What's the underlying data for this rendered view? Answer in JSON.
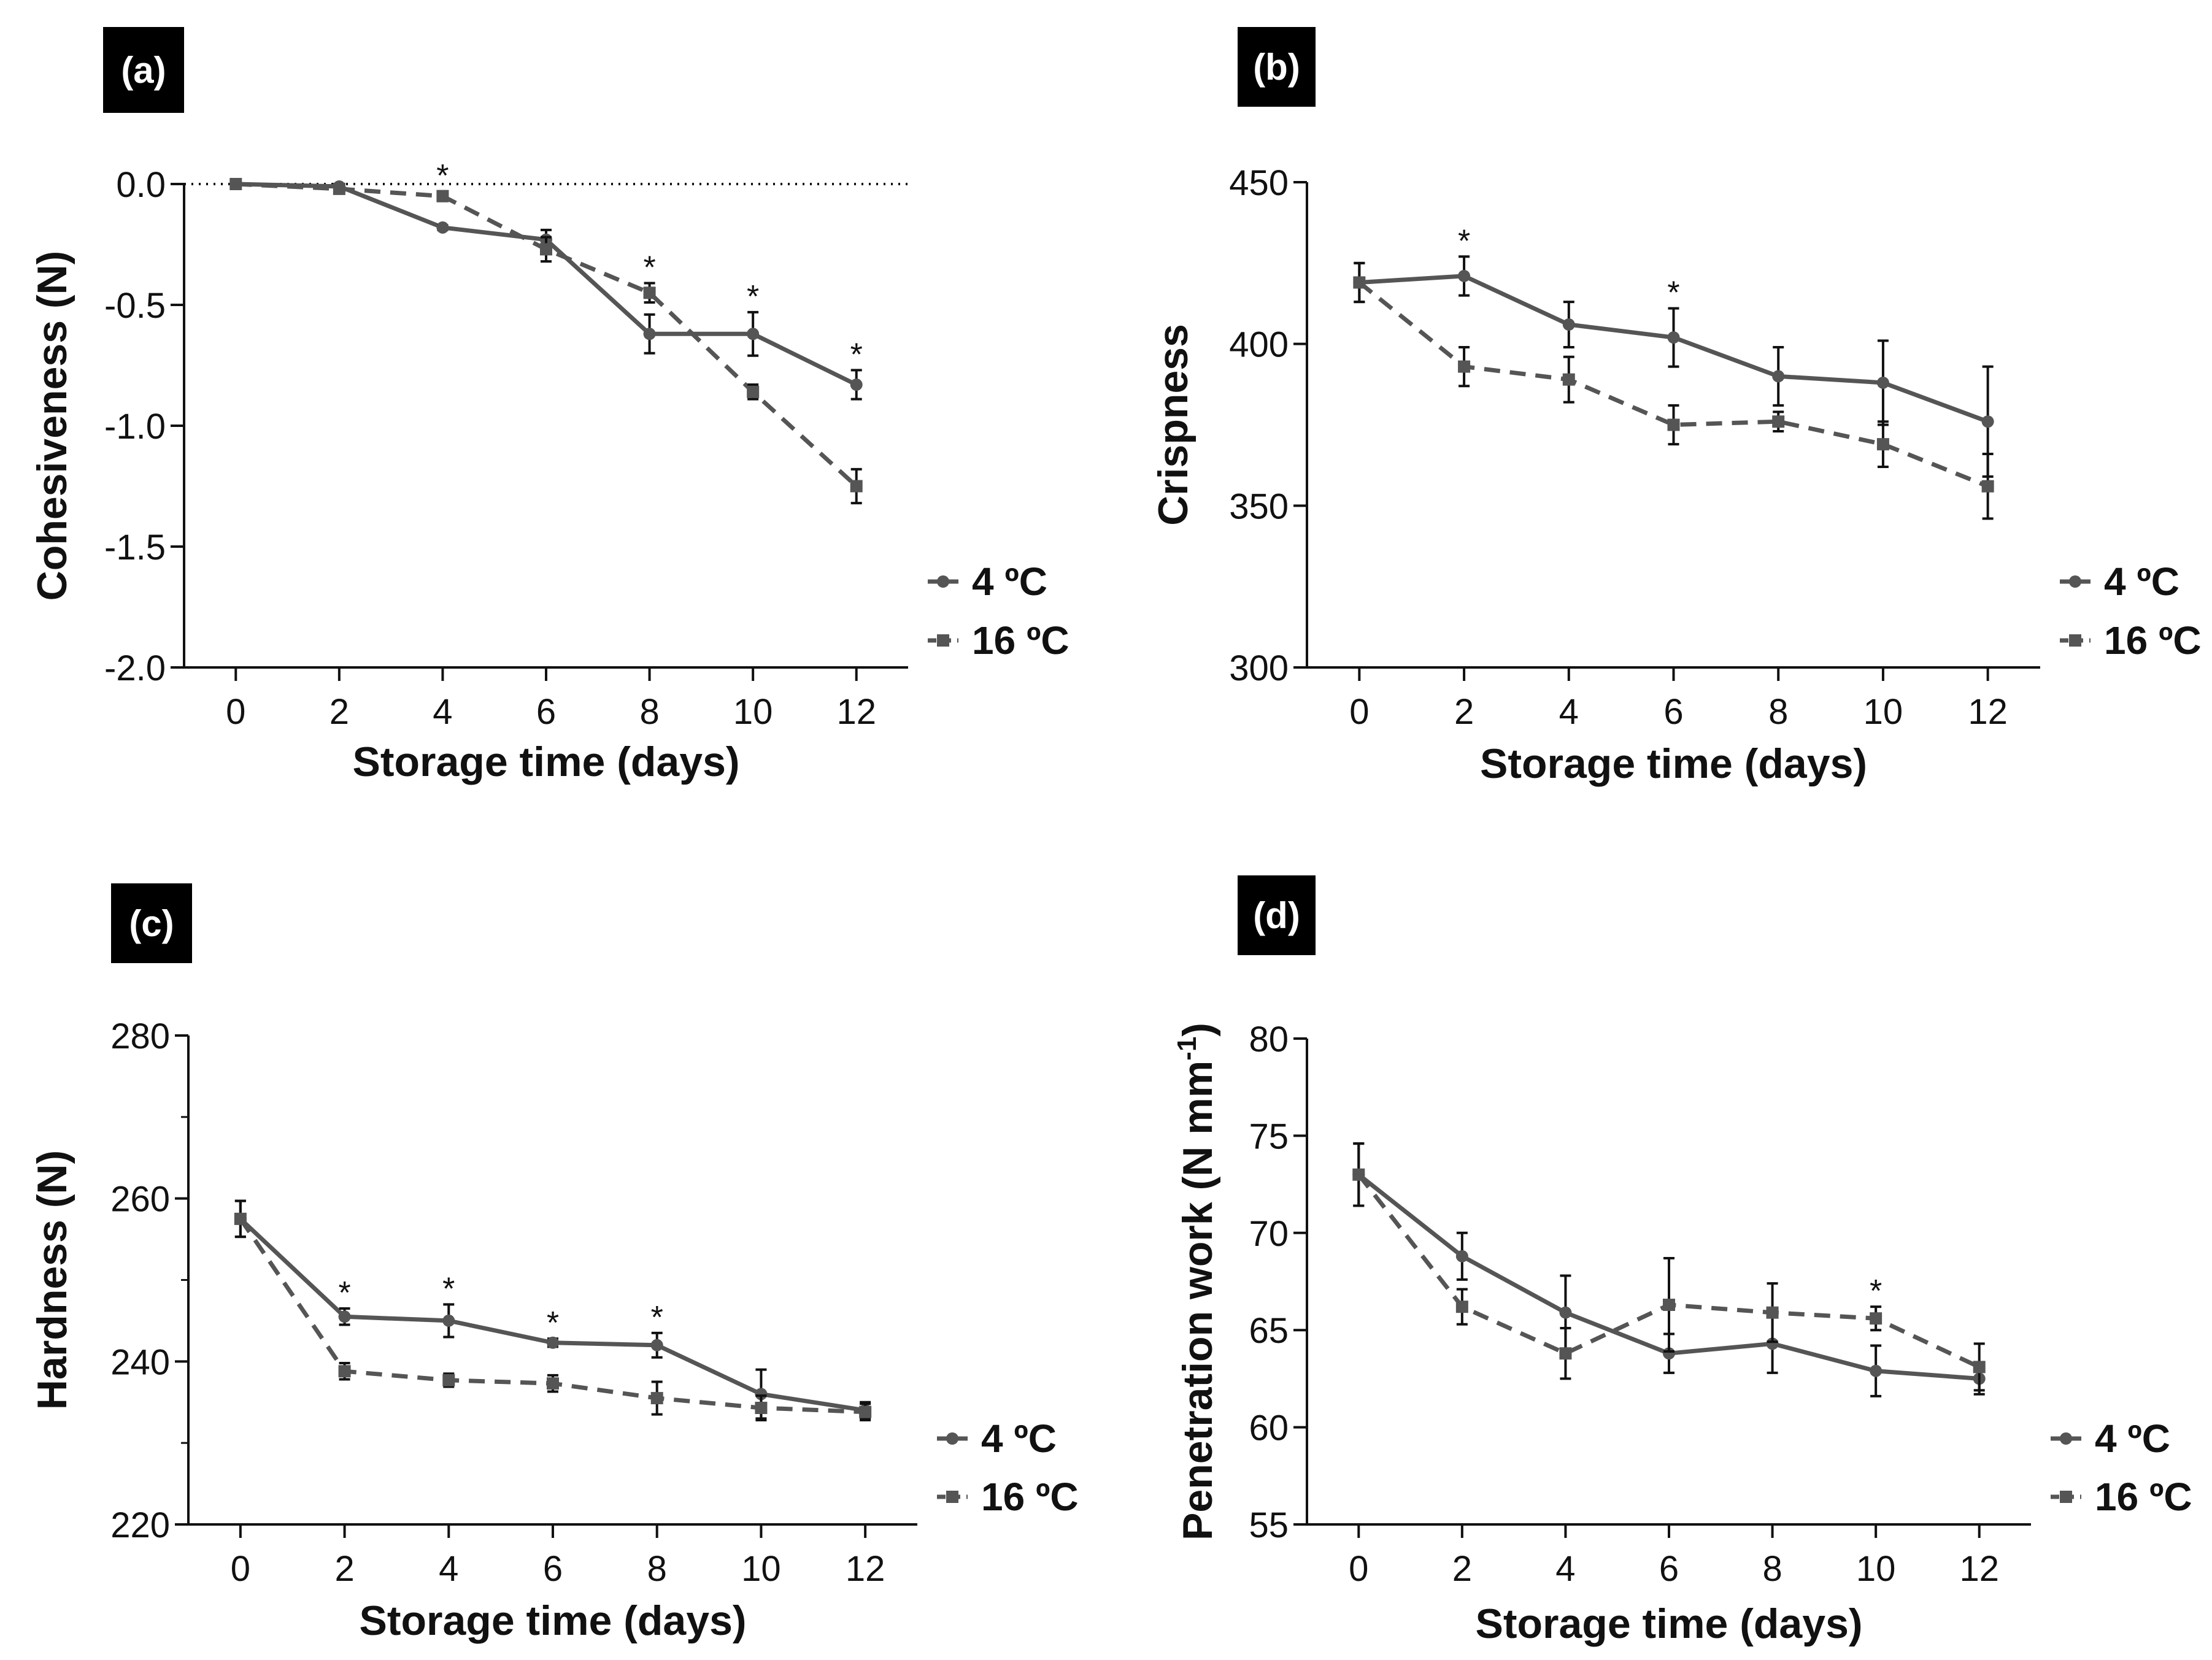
{
  "colors": {
    "series": "#555555",
    "axis": "#111111",
    "errorbar": "#111111",
    "panel_label_bg": "#000000",
    "panel_label_text": "#ffffff"
  },
  "chart_data": [
    {
      "type": "line",
      "panel_label": "(a)",
      "xlabel": "Storage time (days)",
      "ylabel": "Cohesiveness (N)",
      "x": [
        0,
        2,
        4,
        6,
        8,
        10,
        12
      ],
      "xticks": [
        0,
        2,
        4,
        6,
        8,
        10,
        12
      ],
      "xtick_labels": [
        "0",
        "2",
        "4",
        "6",
        "8",
        "10",
        "12"
      ],
      "xlim": [
        -1,
        13
      ],
      "ylim": [
        -2.0,
        0.0
      ],
      "yticks": [
        0.0,
        -0.5,
        -1.0,
        -1.5,
        -2.0
      ],
      "ytick_labels": [
        "0.0",
        "-0.5",
        "-1.0",
        "-1.5",
        "-2.0"
      ],
      "zero_reference_line": true,
      "series": [
        {
          "name": "4 ºC",
          "marker": "circle",
          "line": "solid",
          "values": [
            0.0,
            -0.01,
            -0.18,
            -0.23,
            -0.62,
            -0.62,
            -0.83
          ],
          "errors": [
            0.0,
            0.01,
            0.01,
            0.04,
            0.08,
            0.09,
            0.06
          ]
        },
        {
          "name": "16 ºC",
          "marker": "square",
          "line": "dashed",
          "values": [
            0.0,
            -0.02,
            -0.05,
            -0.27,
            -0.45,
            -0.86,
            -1.25
          ],
          "errors": [
            0.0,
            0.01,
            0.02,
            0.05,
            0.04,
            0.03,
            0.07
          ]
        }
      ],
      "significance_marker": "*",
      "significant_x": [
        4,
        8,
        10,
        12
      ],
      "legend": [
        "4 ºC",
        "16 ºC"
      ],
      "legend_position": "right"
    },
    {
      "type": "line",
      "panel_label": "(b)",
      "xlabel": "Storage time (days)",
      "ylabel": "Crispness",
      "x": [
        0,
        2,
        4,
        6,
        8,
        10,
        12
      ],
      "xticks": [
        0,
        2,
        4,
        6,
        8,
        10,
        12
      ],
      "xtick_labels": [
        "0",
        "2",
        "4",
        "6",
        "8",
        "10",
        "12"
      ],
      "xlim": [
        -1,
        13
      ],
      "ylim": [
        300,
        450
      ],
      "yticks": [
        300,
        350,
        400,
        450
      ],
      "ytick_labels": [
        "300",
        "350",
        "400",
        "450"
      ],
      "zero_reference_line": false,
      "series": [
        {
          "name": "4 ºC",
          "marker": "circle",
          "line": "solid",
          "values": [
            419,
            421,
            406,
            402,
            390,
            388,
            376
          ],
          "errors": [
            6,
            6,
            7,
            9,
            9,
            13,
            17
          ]
        },
        {
          "name": "16 ºC",
          "marker": "square",
          "line": "dashed",
          "values": [
            419,
            393,
            389,
            375,
            376,
            369,
            356
          ],
          "errors": [
            6,
            6,
            7,
            6,
            3,
            7,
            10
          ]
        }
      ],
      "significance_marker": "*",
      "significant_x": [
        2,
        6
      ],
      "legend": [
        "4 ºC",
        "16 ºC"
      ],
      "legend_position": "right"
    },
    {
      "type": "line",
      "panel_label": "(c)",
      "xlabel": "Storage time (days)",
      "ylabel": "Hardness (N)",
      "x": [
        0,
        2,
        4,
        6,
        8,
        10,
        12
      ],
      "xticks": [
        0,
        2,
        4,
        6,
        8,
        10,
        12
      ],
      "xtick_labels": [
        "0",
        "2",
        "4",
        "6",
        "8",
        "10",
        "12"
      ],
      "xlim": [
        -1,
        13
      ],
      "ylim": [
        220,
        280
      ],
      "yticks": [
        220,
        240,
        260,
        280
      ],
      "ytick_labels": [
        "220",
        "240",
        "260",
        "280"
      ],
      "minor_yticks": [
        230,
        250,
        270
      ],
      "zero_reference_line": false,
      "series": [
        {
          "name": "4 ºC",
          "marker": "circle",
          "line": "solid",
          "values": [
            257.5,
            245.5,
            245.0,
            242.3,
            242.0,
            236.0,
            234.0
          ],
          "errors": [
            2.2,
            1.0,
            2.0,
            0.5,
            1.5,
            3.0,
            1.0
          ]
        },
        {
          "name": "16 ºC",
          "marker": "square",
          "line": "dashed",
          "values": [
            257.5,
            238.8,
            237.7,
            237.3,
            235.5,
            234.3,
            233.8
          ],
          "errors": [
            2.2,
            1.0,
            0.8,
            1.0,
            2.0,
            1.5,
            1.0
          ]
        }
      ],
      "significance_marker": "*",
      "significant_x": [
        2,
        4,
        6,
        8
      ],
      "legend": [
        "4 ºC",
        "16 ºC"
      ],
      "legend_position": "right"
    },
    {
      "type": "line",
      "panel_label": "(d)",
      "xlabel": "Storage time (days)",
      "ylabel": "Penetration work (N mm",
      "ylabel_superscript": "-1",
      "ylabel_suffix": ")",
      "x": [
        0,
        2,
        4,
        6,
        8,
        10,
        12
      ],
      "xticks": [
        0,
        2,
        4,
        6,
        8,
        10,
        12
      ],
      "xtick_labels": [
        "0",
        "2",
        "4",
        "6",
        "8",
        "10",
        "12"
      ],
      "xlim": [
        -1,
        13
      ],
      "ylim": [
        55,
        80
      ],
      "yticks": [
        55,
        60,
        65,
        70,
        75,
        80
      ],
      "ytick_labels": [
        "55",
        "60",
        "65",
        "70",
        "75",
        "80"
      ],
      "zero_reference_line": false,
      "series": [
        {
          "name": "4 ºC",
          "marker": "circle",
          "line": "solid",
          "values": [
            73.0,
            68.8,
            65.9,
            63.8,
            64.3,
            62.9,
            62.5
          ],
          "errors": [
            1.6,
            1.2,
            1.9,
            1.0,
            1.5,
            1.3,
            0.8
          ]
        },
        {
          "name": "16 ºC",
          "marker": "square",
          "line": "dashed",
          "values": [
            73.0,
            66.2,
            63.8,
            66.3,
            65.9,
            65.6,
            63.1
          ],
          "errors": [
            1.6,
            0.9,
            1.3,
            2.4,
            1.5,
            0.6,
            1.2
          ]
        }
      ],
      "significance_marker": "*",
      "significant_x": [
        10
      ],
      "legend": [
        "4 ºC",
        "16 ºC"
      ],
      "legend_position": "right"
    }
  ]
}
